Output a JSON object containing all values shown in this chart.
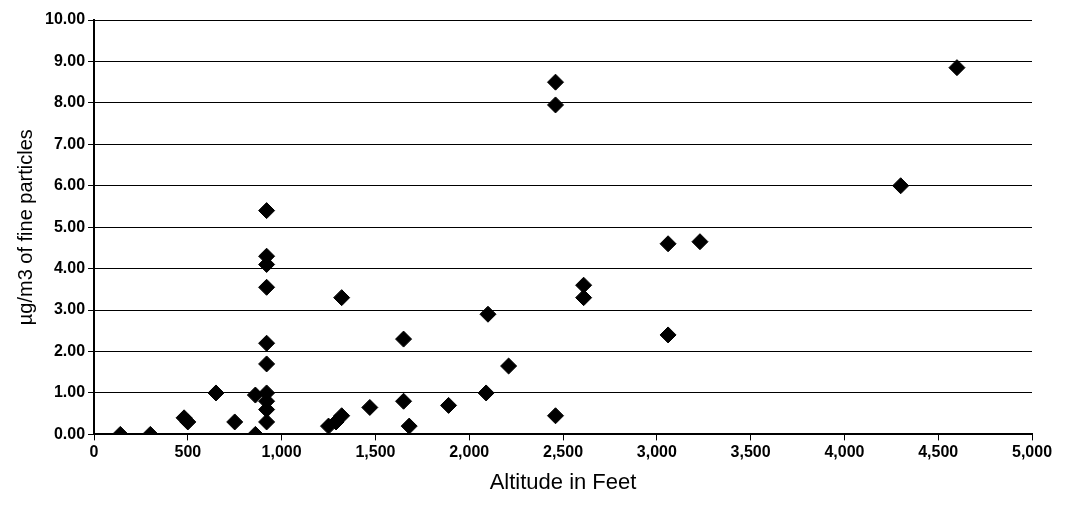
{
  "chart_data": {
    "type": "scatter",
    "xlabel": "Altitude in Feet",
    "ylabel": "µg/m3 of fine particles",
    "x": [
      140,
      300,
      480,
      500,
      650,
      750,
      860,
      860,
      920,
      920,
      920,
      920,
      920,
      920,
      920,
      920,
      920,
      920,
      1250,
      1290,
      1320,
      1320,
      1470,
      1650,
      1650,
      1680,
      1890,
      2090,
      2100,
      2210,
      2460,
      2460,
      2460,
      2610,
      2610,
      3060,
      3060,
      3230,
      4300,
      4600
    ],
    "series": [
      {
        "color": "#000000",
        "values": [
          0,
          0,
          0.4,
          0.3,
          1.0,
          0.3,
          0.95,
          0,
          5.4,
          4.3,
          4.1,
          3.55,
          2.2,
          1.7,
          1.0,
          0.8,
          0.6,
          0.3,
          0.2,
          0.3,
          0.45,
          3.3,
          0.65,
          0.8,
          2.3,
          0.2,
          0.7,
          1.0,
          2.9,
          1.65,
          8.5,
          7.95,
          0.45,
          3.6,
          3.3,
          4.6,
          2.4,
          4.65,
          6.0,
          8.85
        ]
      }
    ],
    "xlim": [
      0,
      5000
    ],
    "xticks": [
      {
        "value": 0,
        "label": "0"
      },
      {
        "value": 500,
        "label": "500"
      },
      {
        "value": 1000,
        "label": "1,000"
      },
      {
        "value": 1500,
        "label": "1,500"
      },
      {
        "value": 2000,
        "label": "2,000"
      },
      {
        "value": 2500,
        "label": "2,500"
      },
      {
        "value": 3000,
        "label": "3,000"
      },
      {
        "value": 3500,
        "label": "3,500"
      },
      {
        "value": 4000,
        "label": "4,000"
      },
      {
        "value": 4500,
        "label": "4,500"
      },
      {
        "value": 5000,
        "label": "5,000"
      }
    ],
    "ylim": [
      0,
      10
    ],
    "yticks": [
      {
        "value": 0,
        "label": "0.00"
      },
      {
        "value": 1,
        "label": "1.00"
      },
      {
        "value": 2,
        "label": "2.00"
      },
      {
        "value": 3,
        "label": "3.00"
      },
      {
        "value": 4,
        "label": "4.00"
      },
      {
        "value": 5,
        "label": "5.00"
      },
      {
        "value": 6,
        "label": "6.00"
      },
      {
        "value": 7,
        "label": "7.00"
      },
      {
        "value": 8,
        "label": "8.00"
      },
      {
        "value": 9,
        "label": "9.00"
      },
      {
        "value": 10,
        "label": "10.00"
      }
    ],
    "grid": "y",
    "legend": false,
    "marker": "diamond"
  }
}
